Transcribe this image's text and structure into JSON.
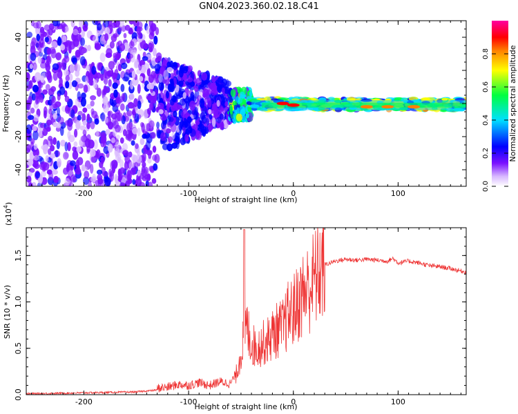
{
  "title": "GN04.2023.360.02.18.C41",
  "chart_data": [
    {
      "type": "heatmap",
      "xlabel": "Height of straight line (km)",
      "ylabel": "Frequency (Hz)",
      "xlim": [
        -255,
        165
      ],
      "ylim": [
        -50,
        50
      ],
      "xticks": [
        -200,
        -100,
        0,
        100
      ],
      "yticks": [
        -40,
        -20,
        0,
        20,
        40
      ],
      "colorbar": {
        "label": "Normalized spectral amplitude",
        "range": [
          0,
          1
        ],
        "ticks": [
          "0.0",
          "0.2",
          "0.4",
          "0.6",
          "0.8"
        ],
        "colormap": [
          "#ffffff",
          "#6a00ff",
          "#0000ff",
          "#00d8ff",
          "#00ff40",
          "#ffff00",
          "#ff8000",
          "#ff0000",
          "#ff00a0"
        ]
      },
      "description_regions": [
        {
          "x_range": [
            -255,
            -130
          ],
          "freq_range": [
            -50,
            50
          ],
          "amplitude": 0.1
        },
        {
          "x_range": [
            -130,
            -60
          ],
          "freq_range": [
            -30,
            30
          ],
          "amplitude": 0.15
        },
        {
          "x_range": [
            -60,
            -40
          ],
          "freq_range": [
            -10,
            8
          ],
          "amplitude": 0.35
        },
        {
          "x_range": [
            -40,
            165
          ],
          "freq_range": [
            -4,
            3
          ],
          "amplitude": 0.45
        }
      ],
      "peaks": [
        {
          "x": -10,
          "freq": 0,
          "amplitude": 0.85
        },
        {
          "x": 0,
          "freq": -1,
          "amplitude": 0.85
        },
        {
          "x": 70,
          "freq": -2,
          "amplitude": 0.8
        },
        {
          "x": 90,
          "freq": -2,
          "amplitude": 0.8
        },
        {
          "x": 115,
          "freq": -2,
          "amplitude": 0.75
        }
      ]
    },
    {
      "type": "line",
      "xlabel": "Height of straight line (km)",
      "ylabel": "SNR (10 * v/v)",
      "y_multiplier_label": "(x10",
      "y_multiplier_exp": "4",
      "y_multiplier_close": ")",
      "xlim": [
        -255,
        165
      ],
      "ylim": [
        0,
        1.8
      ],
      "xticks": [
        -200,
        -100,
        0,
        100
      ],
      "yticks": [
        "0.0",
        "0.5",
        "1.0",
        "1.5"
      ],
      "line_color": "#ee3333",
      "series": [
        {
          "x": [
            -255,
            -200,
            -150,
            -120,
            -110,
            -100,
            -90,
            -80,
            -70,
            -60,
            -55,
            -50,
            -45,
            -40,
            -35,
            -30,
            -25,
            -20,
            -15,
            -10,
            -5,
            0,
            5,
            10,
            15,
            20,
            25,
            30,
            40,
            50,
            60,
            70,
            80,
            90,
            95,
            100,
            110,
            120,
            130,
            140,
            150,
            165
          ],
          "y": [
            0.01,
            0.02,
            0.03,
            0.06,
            0.09,
            0.08,
            0.11,
            0.08,
            0.12,
            0.1,
            0.2,
            0.45,
            0.75,
            0.55,
            0.5,
            0.55,
            0.58,
            0.65,
            0.7,
            0.72,
            0.85,
            0.9,
            1.0,
            1.1,
            1.15,
            1.25,
            1.33,
            1.4,
            1.44,
            1.46,
            1.45,
            1.46,
            1.45,
            1.44,
            1.47,
            1.42,
            1.44,
            1.42,
            1.39,
            1.38,
            1.36,
            1.32
          ]
        }
      ]
    }
  ]
}
